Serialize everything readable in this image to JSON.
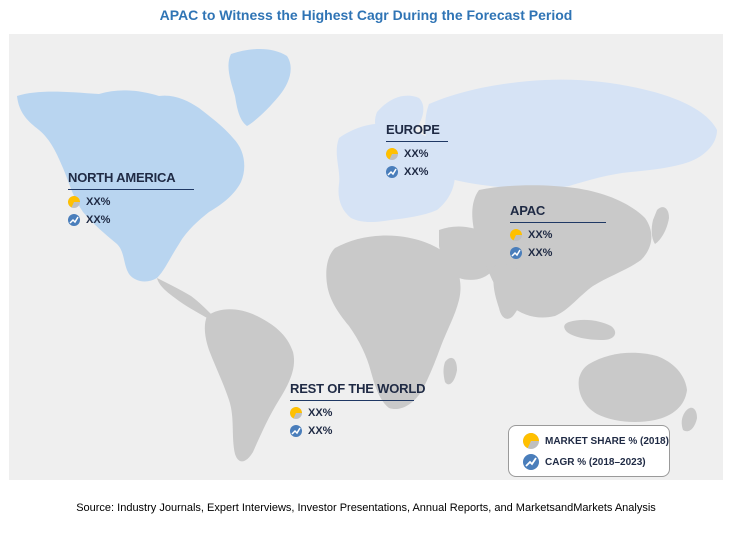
{
  "title": "APAC to Witness the Highest Cagr During the Forecast Period",
  "regions": {
    "north_america": {
      "name": "NORTH AMERICA",
      "market_share": "XX%",
      "cagr": "XX%"
    },
    "europe": {
      "name": "EUROPE",
      "market_share": "XX%",
      "cagr": "XX%"
    },
    "apac": {
      "name": "APAC",
      "market_share": "XX%",
      "cagr": "XX%"
    },
    "rest_of_world": {
      "name": "REST OF THE WORLD",
      "market_share": "XX%",
      "cagr": "XX%"
    }
  },
  "legend": {
    "market_share_label": "MARKET SHARE % (2018)",
    "cagr_label": "CAGR % (2018–2023)",
    "market_share_icon": "pie-chart-icon",
    "cagr_icon": "trend-line-icon"
  },
  "source": "Source: Industry Journals, Expert Interviews, Investor Presentations, Annual Reports, and MarketsandMarkets Analysis",
  "colors": {
    "title": "#2f74b5",
    "highlighted_region": "#b9d5f0",
    "europe_apac_region": "#d6e3f5",
    "other_land": "#c9c9c9",
    "background_panel": "#efefef",
    "market_share_icon": "#ffc000",
    "cagr_icon": "#4a7ebb"
  }
}
